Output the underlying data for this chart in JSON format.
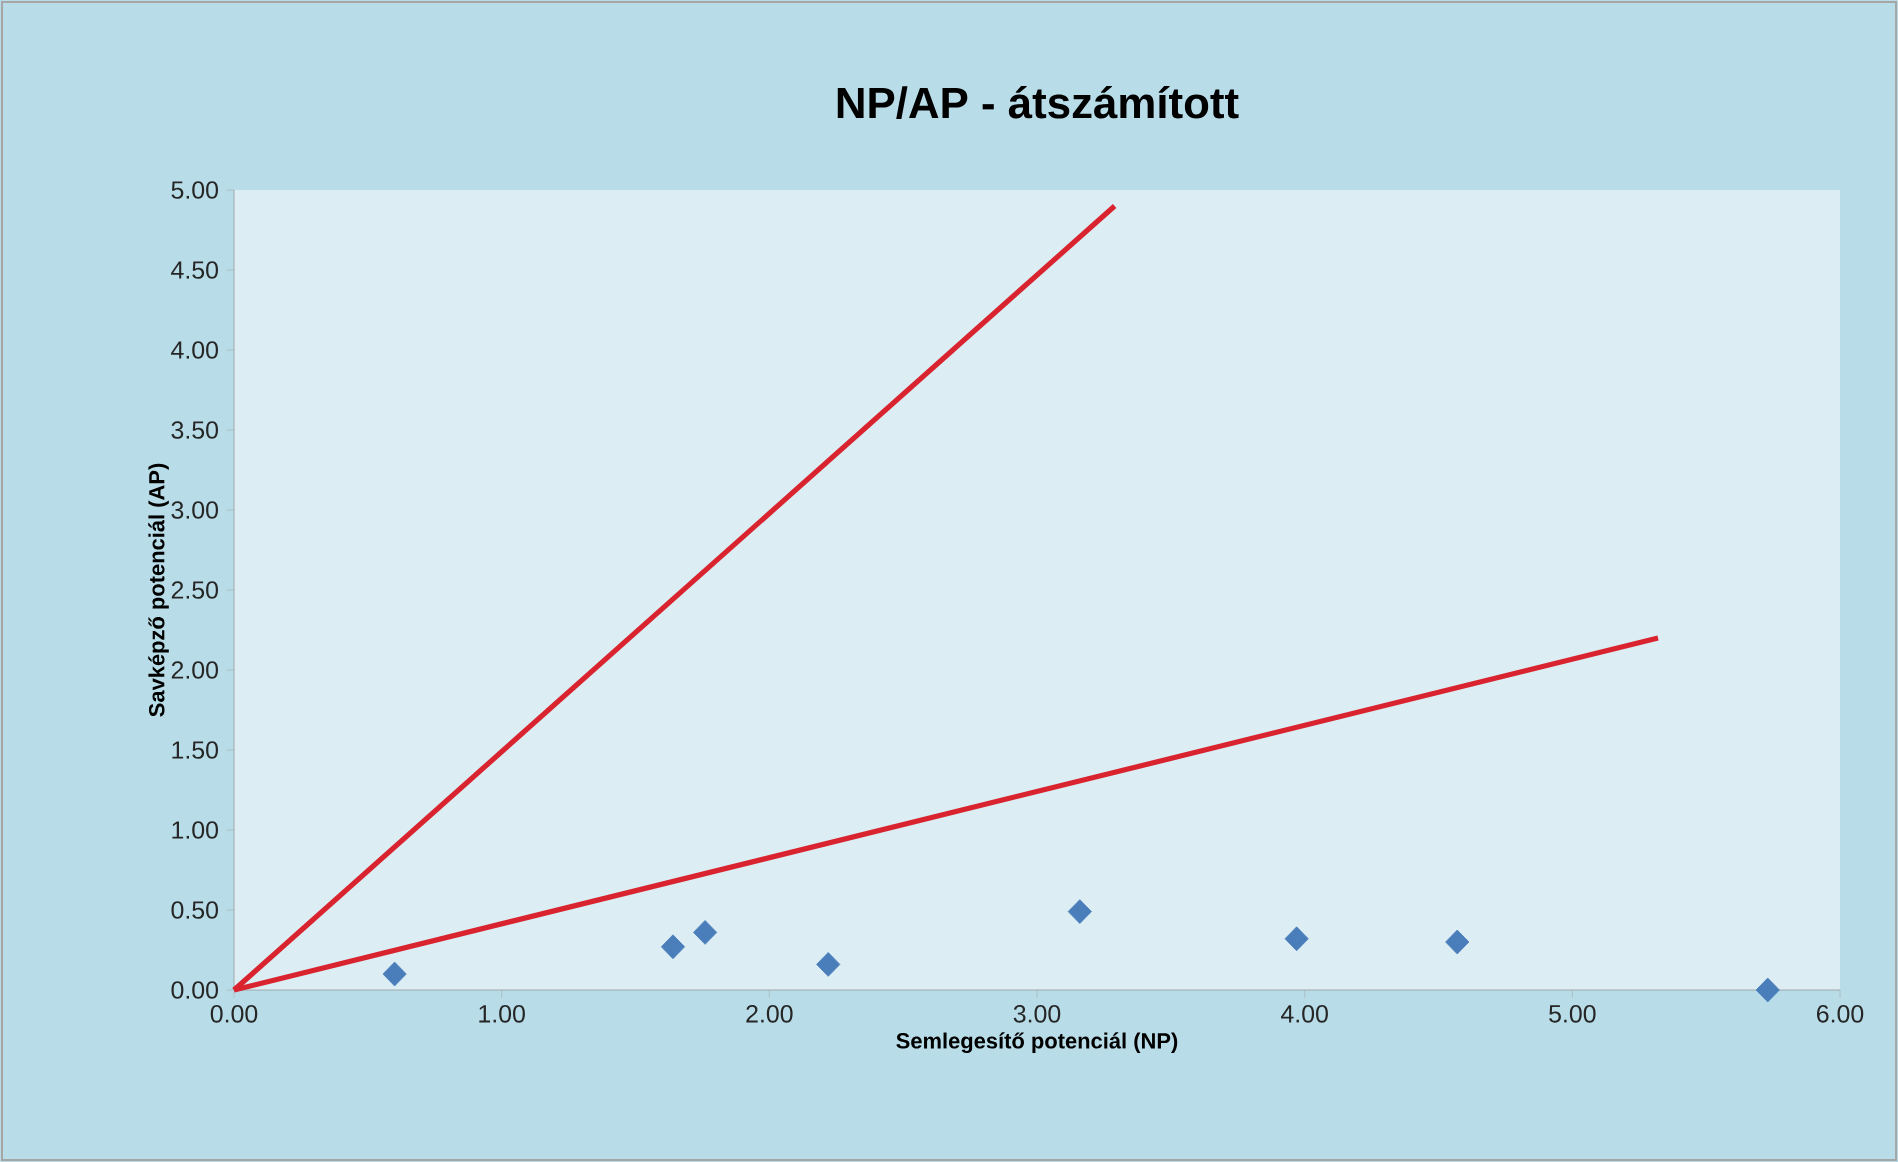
{
  "chart_data": {
    "type": "scatter",
    "title": "NP/AP - átszámított",
    "xlabel": "Semlegesítő potenciál (NP)",
    "ylabel": "Savképző potenciál (AP)",
    "xlim": [
      0,
      6
    ],
    "ylim": [
      0,
      5
    ],
    "xticks": [
      {
        "value": 0,
        "label": "0.00"
      },
      {
        "value": 1,
        "label": "1.00"
      },
      {
        "value": 2,
        "label": "2.00"
      },
      {
        "value": 3,
        "label": "3.00"
      },
      {
        "value": 4,
        "label": "4.00"
      },
      {
        "value": 5,
        "label": "5.00"
      },
      {
        "value": 6,
        "label": "6.00"
      }
    ],
    "yticks": [
      {
        "value": 0,
        "label": "0.00"
      },
      {
        "value": 0.5,
        "label": "0.50"
      },
      {
        "value": 1,
        "label": "1.00"
      },
      {
        "value": 1.5,
        "label": "1.50"
      },
      {
        "value": 2,
        "label": "2.00"
      },
      {
        "value": 2.5,
        "label": "2.50"
      },
      {
        "value": 3,
        "label": "3.00"
      },
      {
        "value": 3.5,
        "label": "3.50"
      },
      {
        "value": 4,
        "label": "4.00"
      },
      {
        "value": 4.5,
        "label": "4.50"
      },
      {
        "value": 5,
        "label": "5.00"
      }
    ],
    "series": [
      {
        "type": "line",
        "color": "#d9232e",
        "line_style": "solid",
        "x": [
          0,
          3.29
        ],
        "values": [
          0,
          4.9
        ]
      },
      {
        "type": "line",
        "color": "#d9232e",
        "line_style": "solid",
        "x": [
          0,
          5.32
        ],
        "values": [
          0,
          2.2
        ]
      },
      {
        "color": "#4a7ebb",
        "marker": "diamond",
        "x": [
          0.6,
          1.64,
          1.76,
          2.22,
          3.16,
          3.97,
          4.57,
          5.73
        ],
        "values": [
          0.1,
          0.27,
          0.36,
          0.16,
          0.49,
          0.32,
          0.3,
          0.0
        ]
      }
    ]
  }
}
